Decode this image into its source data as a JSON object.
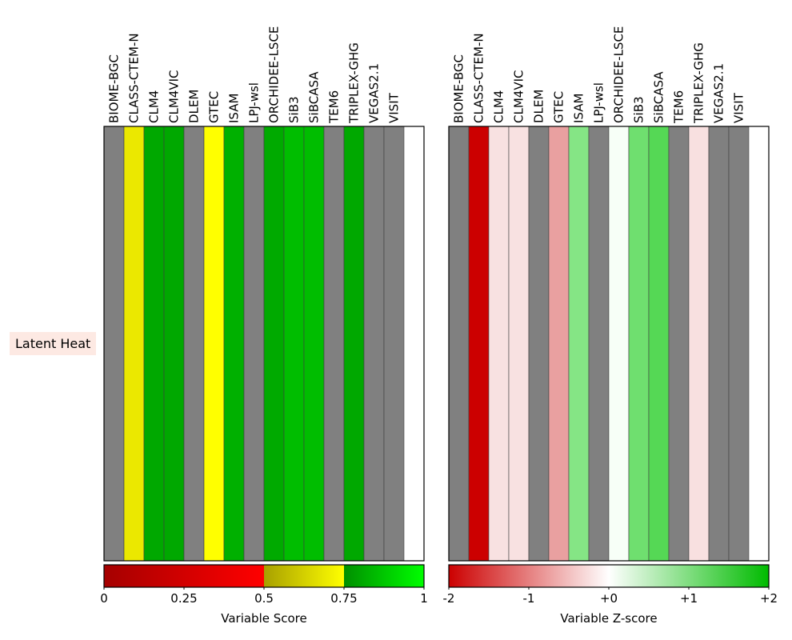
{
  "row_label": "Latent Heat",
  "chart_data": [
    {
      "type": "heatmap",
      "categories": [
        "BIOME-BGC",
        "CLASS-CTEM-N",
        "CLM4",
        "CLM4VIC",
        "DLEM",
        "GTEC",
        "ISAM",
        "LPJ-wsl",
        "ORCHIDEE-LSCE",
        "SiB3",
        "SiBCASA",
        "TEM6",
        "TRIPLEX-GHG",
        "VEGAS2.1",
        "VISIT"
      ],
      "rows": [
        "Latent Heat"
      ],
      "cell_colors": [
        "#808080",
        "#ebe800",
        "#00a800",
        "#00a800",
        "#808080",
        "#ffff00",
        "#00b000",
        "#808080",
        "#00aa00",
        "#00bd00",
        "#00bd00",
        "#808080",
        "#00a800",
        "#808080",
        "#808080"
      ],
      "colorbar": {
        "label": "Variable Score",
        "ticks": [
          "0",
          "0.25",
          "0.5",
          "0.75",
          "1"
        ],
        "range": [
          0,
          1
        ],
        "segments": [
          {
            "from": 0,
            "to": 0.5,
            "colors": [
              "#a50000",
              "#ff0000"
            ]
          },
          {
            "from": 0.5,
            "to": 0.75,
            "colors": [
              "#a8a000",
              "#ffff00"
            ]
          },
          {
            "from": 0.75,
            "to": 1,
            "colors": [
              "#008f00",
              "#00ff00"
            ]
          }
        ]
      }
    },
    {
      "type": "heatmap",
      "categories": [
        "BIOME-BGC",
        "CLASS-CTEM-N",
        "CLM4",
        "CLM4VIC",
        "DLEM",
        "GTEC",
        "ISAM",
        "LPJ-wsl",
        "ORCHIDEE-LSCE",
        "SiB3",
        "SiBCASA",
        "TEM6",
        "TRIPLEX-GHG",
        "VEGAS2.1",
        "VISIT"
      ],
      "rows": [
        "Latent Heat"
      ],
      "cell_colors": [
        "#808080",
        "#cc0000",
        "#f8e1e1",
        "#f8e1e1",
        "#808080",
        "#e9a0a0",
        "#85e585",
        "#808080",
        "#f7fff7",
        "#6fdf6f",
        "#55d855",
        "#808080",
        "#f8e0e0",
        "#808080",
        "#808080"
      ],
      "colorbar": {
        "label": "Variable Z-score",
        "ticks": [
          "-2",
          "-1",
          "+0",
          "+1",
          "+2"
        ],
        "range": [
          -2,
          2
        ],
        "segments": [
          {
            "from": 0,
            "to": 0.5,
            "colors": [
              "#cc0000",
              "#ffffff"
            ]
          },
          {
            "from": 0.5,
            "to": 1,
            "colors": [
              "#ffffff",
              "#00bb00"
            ]
          }
        ]
      }
    }
  ]
}
